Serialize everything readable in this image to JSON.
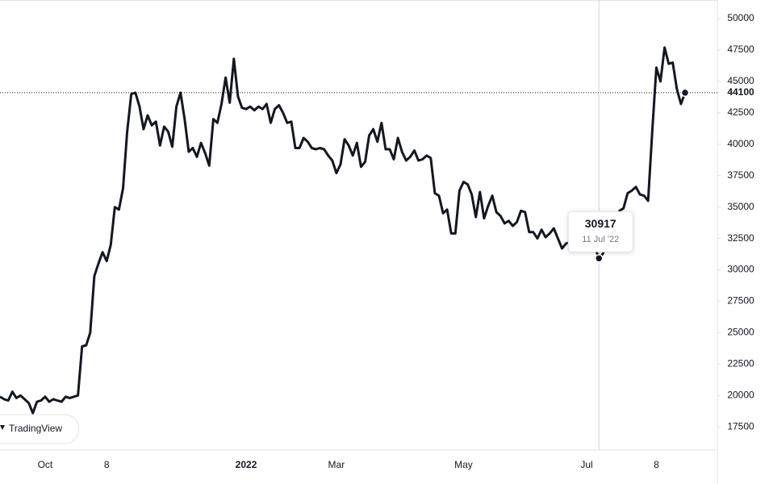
{
  "chart_data": {
    "type": "line",
    "color": "#131722",
    "attribution": "TradingView",
    "tooltip": {
      "index": 146,
      "date": "11 Jul '22"
    },
    "last_index": 167,
    "ylim": [
      15650,
      51480
    ],
    "yticks": [
      17500,
      20000,
      22500,
      25000,
      27500,
      30000,
      32500,
      35000,
      37500,
      40000,
      42500,
      45000,
      47500,
      50000
    ],
    "categories": [
      null,
      null,
      null,
      null,
      null,
      null,
      null,
      null,
      null,
      null,
      null,
      "Oct",
      null,
      null,
      null,
      null,
      null,
      null,
      null,
      null,
      null,
      null,
      null,
      null,
      null,
      null,
      "8",
      null,
      null,
      null,
      null,
      null,
      null,
      null,
      null,
      null,
      null,
      null,
      null,
      null,
      null,
      null,
      null,
      null,
      null,
      null,
      null,
      null,
      null,
      null,
      null,
      null,
      null,
      null,
      null,
      null,
      null,
      null,
      null,
      null,
      "2022",
      null,
      null,
      null,
      null,
      null,
      null,
      null,
      null,
      null,
      null,
      null,
      null,
      null,
      null,
      null,
      null,
      null,
      null,
      null,
      null,
      null,
      "Mar",
      null,
      null,
      null,
      null,
      null,
      null,
      null,
      null,
      null,
      null,
      null,
      null,
      null,
      null,
      null,
      null,
      null,
      null,
      null,
      null,
      null,
      null,
      null,
      null,
      null,
      null,
      null,
      null,
      null,
      null,
      "May",
      null,
      null,
      null,
      null,
      null,
      null,
      null,
      null,
      null,
      null,
      null,
      null,
      null,
      null,
      null,
      null,
      null,
      null,
      null,
      null,
      null,
      null,
      null,
      null,
      null,
      null,
      null,
      null,
      null,
      "Jul",
      null,
      null,
      null,
      null,
      null,
      null,
      null,
      null,
      null,
      null,
      null,
      null,
      null,
      null,
      null,
      null,
      "8",
      null,
      null,
      null,
      null,
      null,
      null,
      null
    ],
    "values": [
      19900,
      19700,
      19600,
      20300,
      19800,
      20000,
      19700,
      19400,
      18600,
      19500,
      19600,
      19900,
      19500,
      19700,
      19600,
      19500,
      19900,
      19800,
      19900,
      20000,
      23900,
      24000,
      25000,
      29500,
      30500,
      31400,
      30700,
      32000,
      35000,
      34800,
      36500,
      41000,
      44000,
      44100,
      43000,
      41200,
      42300,
      41500,
      41800,
      39900,
      41400,
      41000,
      39800,
      43000,
      44100,
      42000,
      39400,
      39700,
      39000,
      40100,
      39300,
      38300,
      42000,
      41700,
      43200,
      45300,
      43300,
      46800,
      43800,
      42900,
      42800,
      43000,
      42700,
      43000,
      42800,
      43200,
      41700,
      42800,
      43100,
      42500,
      41700,
      41800,
      39700,
      39700,
      40500,
      40200,
      39700,
      39600,
      39700,
      39600,
      39100,
      38700,
      37700,
      38400,
      40400,
      39900,
      39100,
      40100,
      38200,
      38600,
      40700,
      41200,
      40200,
      41700,
      39600,
      39600,
      38800,
      40500,
      39400,
      38700,
      39000,
      39500,
      38700,
      38800,
      39100,
      38900,
      36100,
      35900,
      34500,
      34800,
      32900,
      32900,
      36300,
      37000,
      36800,
      36000,
      34200,
      36200,
      34100,
      35100,
      35900,
      34600,
      34300,
      33700,
      33900,
      33500,
      33800,
      34700,
      34600,
      33000,
      33000,
      32500,
      33200,
      32600,
      32900,
      33300,
      32500,
      31700,
      32100,
      32200,
      32400,
      32200,
      32500,
      32300,
      32200,
      31800,
      30917,
      31300,
      32500,
      33400,
      34000,
      34700,
      34900,
      36100,
      36300,
      36600,
      36000,
      35900,
      35500,
      41000,
      46100,
      45000,
      47700,
      46400,
      46500,
      44400,
      43200,
      44100
    ]
  }
}
